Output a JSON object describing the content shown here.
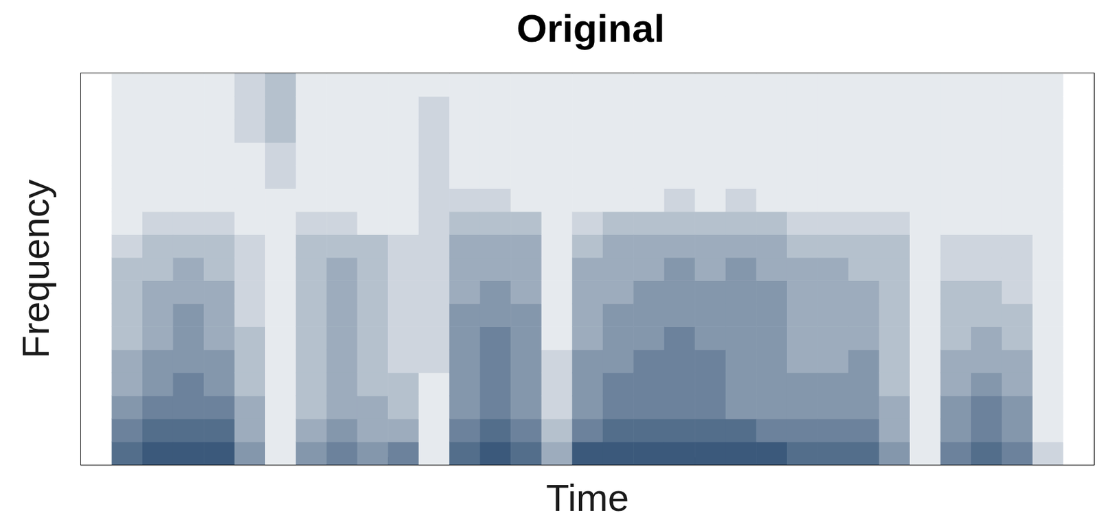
{
  "chart_data": {
    "type": "heatmap",
    "title": "Original",
    "x_label": "Time",
    "y_label": "Frequency",
    "x": [
      0,
      0.2,
      0.4,
      0.6,
      0.8,
      1,
      1.2,
      1.4,
      1.6,
      1.8,
      2,
      2.2,
      2.4,
      2.6,
      2.8,
      3,
      3.2,
      3.4,
      3.6,
      3.8,
      4,
      4.2,
      4.4,
      4.6,
      4.8,
      5,
      5.2,
      5.4,
      5.6,
      5.8,
      6,
      6.2,
      6.4
    ],
    "y": [
      0,
      0.3,
      0.6,
      0.9,
      1.2,
      1.5,
      1.8,
      2.1,
      2.4,
      2.7,
      3,
      3.3,
      3.6,
      3.9,
      4.2,
      4.5,
      4.8
    ],
    "cells": [
      [
        0,
        0,
        0,
        0,
        0,
        0,
        0,
        0,
        0,
        0,
        0,
        0,
        0,
        0,
        0,
        0,
        0
      ],
      [
        7,
        6,
        5,
        4,
        4,
        3,
        3,
        3,
        3,
        2,
        1,
        1,
        1,
        1,
        1,
        1,
        1
      ],
      [
        8,
        7,
        6,
        5,
        5,
        4,
        4,
        4,
        3,
        3,
        2,
        1,
        1,
        1,
        1,
        1,
        1
      ],
      [
        8,
        7,
        6,
        6,
        5,
        5,
        5,
        4,
        4,
        3,
        2,
        1,
        1,
        1,
        1,
        1,
        1
      ],
      [
        8,
        7,
        6,
        5,
        5,
        4,
        4,
        4,
        3,
        3,
        2,
        1,
        1,
        1,
        1,
        1,
        1
      ],
      [
        5,
        4,
        4,
        3,
        3,
        3,
        2,
        2,
        2,
        2,
        1,
        1,
        1,
        1,
        2,
        2,
        2
      ],
      [
        1,
        1,
        1,
        1,
        1,
        1,
        1,
        1,
        1,
        1,
        1,
        1,
        2,
        2,
        3,
        3,
        3
      ],
      [
        5,
        4,
        3,
        3,
        3,
        3,
        3,
        3,
        3,
        3,
        2,
        1,
        1,
        1,
        1,
        1,
        1
      ],
      [
        6,
        5,
        4,
        4,
        4,
        4,
        4,
        4,
        4,
        3,
        2,
        1,
        1,
        1,
        1,
        1,
        1
      ],
      [
        5,
        4,
        4,
        3,
        3,
        3,
        3,
        3,
        3,
        3,
        1,
        1,
        1,
        1,
        1,
        1,
        1
      ],
      [
        6,
        4,
        3,
        3,
        2,
        2,
        2,
        2,
        2,
        2,
        1,
        1,
        1,
        1,
        1,
        1,
        1
      ],
      [
        1,
        1,
        1,
        1,
        2,
        2,
        2,
        2,
        2,
        2,
        2,
        2,
        2,
        2,
        2,
        2,
        1
      ],
      [
        7,
        6,
        5,
        5,
        5,
        5,
        5,
        4,
        4,
        4,
        3,
        2,
        1,
        1,
        1,
        1,
        1
      ],
      [
        8,
        7,
        6,
        6,
        6,
        6,
        5,
        5,
        4,
        4,
        3,
        2,
        1,
        1,
        1,
        1,
        1
      ],
      [
        7,
        6,
        5,
        5,
        5,
        5,
        5,
        4,
        4,
        4,
        3,
        1,
        1,
        1,
        1,
        1,
        1
      ],
      [
        4,
        3,
        2,
        2,
        2,
        1,
        1,
        1,
        1,
        1,
        1,
        1,
        1,
        1,
        1,
        1,
        1
      ],
      [
        8,
        6,
        5,
        5,
        5,
        4,
        4,
        4,
        4,
        3,
        2,
        1,
        1,
        1,
        1,
        1,
        1
      ],
      [
        8,
        7,
        6,
        6,
        5,
        5,
        5,
        4,
        4,
        4,
        3,
        1,
        1,
        1,
        1,
        1,
        1
      ],
      [
        8,
        7,
        6,
        6,
        6,
        5,
        5,
        5,
        4,
        4,
        3,
        1,
        1,
        1,
        1,
        1,
        1
      ],
      [
        8,
        7,
        6,
        6,
        6,
        6,
        5,
        5,
        5,
        4,
        3,
        2,
        1,
        1,
        1,
        1,
        1
      ],
      [
        8,
        7,
        6,
        6,
        6,
        5,
        5,
        5,
        4,
        4,
        3,
        1,
        1,
        1,
        1,
        1,
        1
      ],
      [
        8,
        7,
        5,
        5,
        5,
        5,
        5,
        5,
        5,
        4,
        3,
        2,
        1,
        1,
        1,
        1,
        1
      ],
      [
        8,
        6,
        5,
        5,
        5,
        5,
        5,
        5,
        4,
        4,
        3,
        1,
        1,
        1,
        1,
        1,
        1
      ],
      [
        7,
        6,
        5,
        5,
        4,
        4,
        4,
        4,
        4,
        3,
        2,
        1,
        1,
        1,
        1,
        1,
        1
      ],
      [
        7,
        6,
        5,
        5,
        4,
        4,
        4,
        4,
        4,
        3,
        2,
        1,
        1,
        1,
        1,
        1,
        1
      ],
      [
        7,
        6,
        5,
        5,
        5,
        4,
        4,
        4,
        3,
        3,
        2,
        1,
        1,
        1,
        1,
        1,
        1
      ],
      [
        5,
        4,
        4,
        3,
        3,
        3,
        3,
        3,
        3,
        3,
        2,
        1,
        1,
        1,
        1,
        1,
        1
      ],
      [
        1,
        1,
        1,
        1,
        1,
        1,
        1,
        1,
        1,
        1,
        1,
        1,
        1,
        1,
        1,
        1,
        1
      ],
      [
        6,
        5,
        5,
        4,
        4,
        3,
        3,
        3,
        2,
        2,
        1,
        1,
        1,
        1,
        1,
        1,
        1
      ],
      [
        7,
        6,
        6,
        5,
        4,
        4,
        3,
        3,
        2,
        2,
        1,
        1,
        1,
        1,
        1,
        1,
        1
      ],
      [
        6,
        5,
        5,
        4,
        4,
        3,
        3,
        2,
        2,
        2,
        1,
        1,
        1,
        1,
        1,
        1,
        1
      ],
      [
        2,
        1,
        1,
        1,
        1,
        1,
        1,
        1,
        1,
        1,
        1,
        1,
        1,
        1,
        1,
        1,
        1
      ],
      [
        0,
        0,
        0,
        0,
        0,
        0,
        0,
        0,
        0,
        0,
        0,
        0,
        0,
        0,
        0,
        0,
        0
      ]
    ],
    "zlim": [
      0,
      9
    ],
    "color": "#22446a",
    "xlim": [
      0,
      6.6
    ],
    "xticks": [
      0,
      1,
      2,
      3,
      4,
      5,
      6
    ],
    "ylim": [
      0,
      5.1
    ],
    "yticks": [
      0,
      1,
      2,
      3,
      4,
      5
    ],
    "tick_labels": false,
    "grid": false
  }
}
